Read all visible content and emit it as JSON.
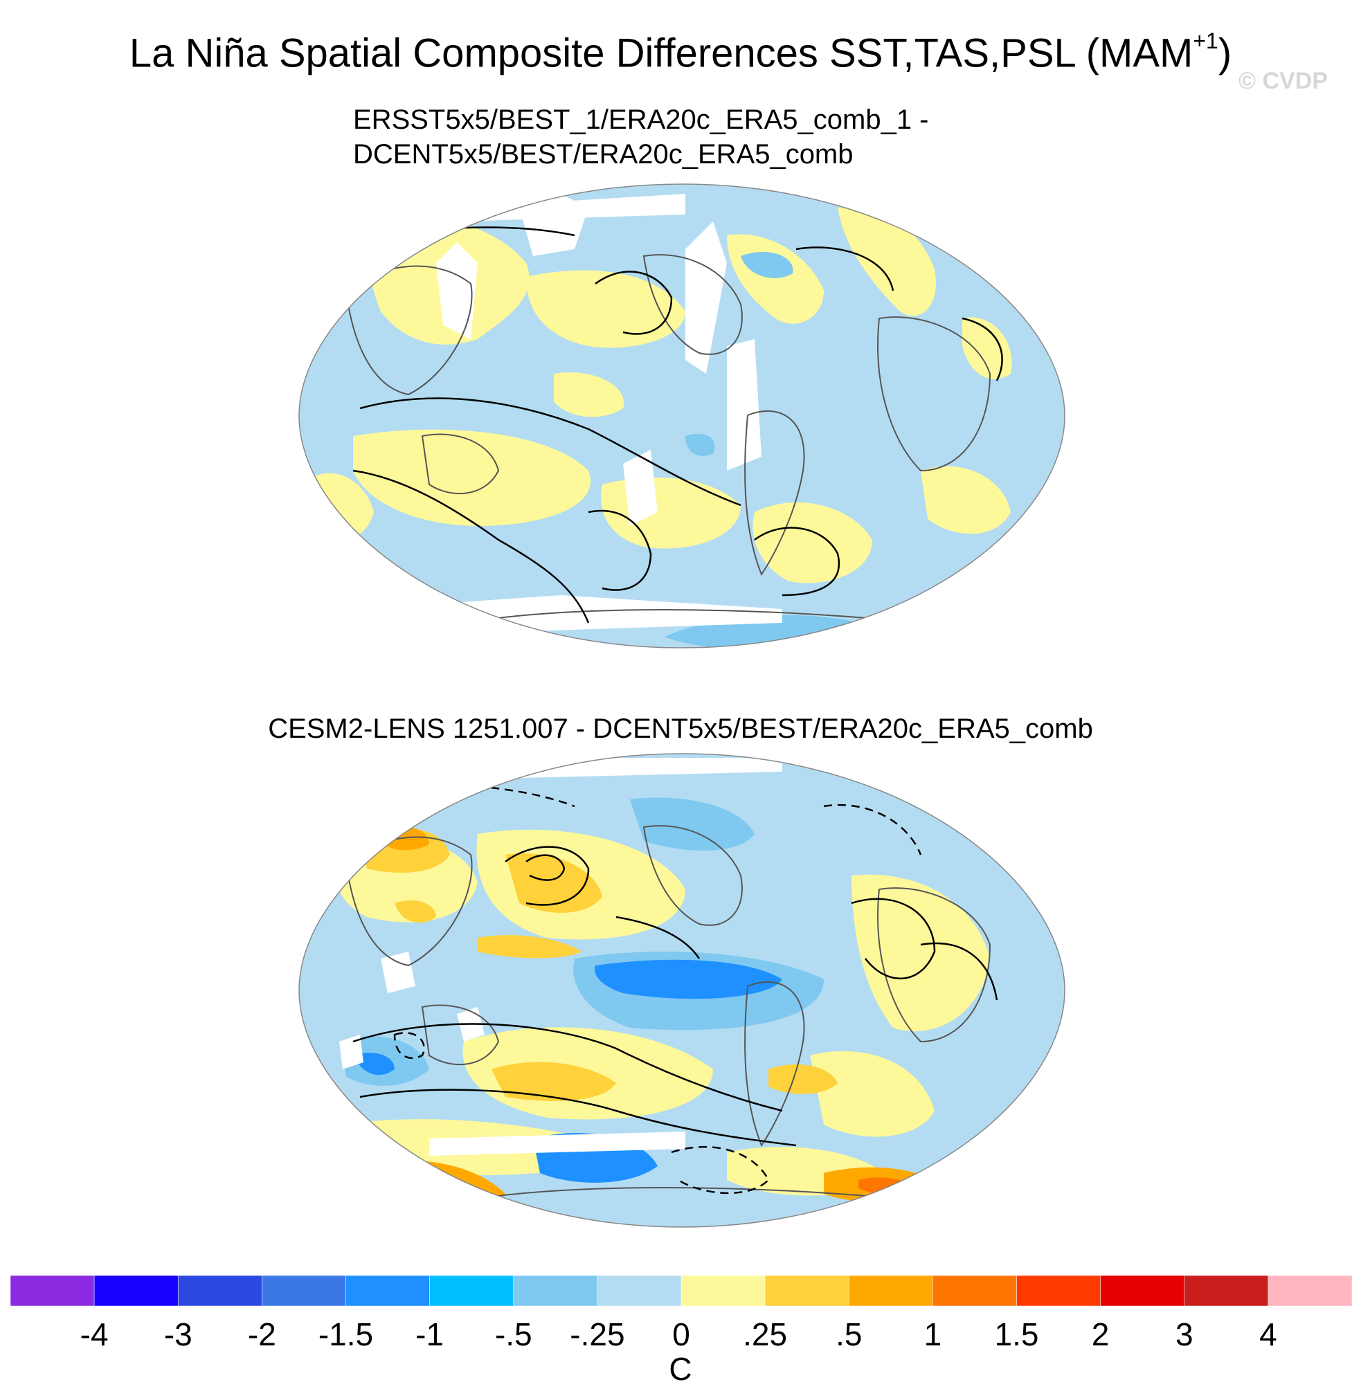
{
  "header": {
    "title_main": "La Niña Spatial Composite Differences SST,TAS,PSL (MAM",
    "title_sup": "+1",
    "title_close": ")",
    "watermark": "© CVDP"
  },
  "panels": [
    {
      "title_line1": "ERSST5x5/BEST_1/ERA20c_ERA5_comb_1 -",
      "title_line2": "DCENT5x5/BEST/ERA20c_ERA5_comb"
    },
    {
      "title_line1": "CESM2-LENS 1251.007 - DCENT5x5/BEST/ERA20c_ERA5_comb"
    }
  ],
  "colorbar": {
    "unit": "C",
    "levels": [
      "-4",
      "-3",
      "-2",
      "-1.5",
      "-1",
      "-.5",
      "-.25",
      "0",
      ".25",
      ".5",
      "1",
      "1.5",
      "2",
      "3",
      "4"
    ],
    "colors": [
      "#8a2be2",
      "#1a00ff",
      "#2b48e0",
      "#3a78e6",
      "#1e90ff",
      "#00bfff",
      "#7fc8ef",
      "#b3dcf2",
      "#fdf89a",
      "#ffd13a",
      "#ffa800",
      "#ff7600",
      "#ff3a00",
      "#e60000",
      "#c81e1e",
      "#ffb6c1"
    ]
  },
  "map_colors": {
    "ocean_neg": "#b3dcf2",
    "neg_mid": "#7fc8ef",
    "neg_strong": "#1e90ff",
    "pos_light": "#fdf89a",
    "pos_mid": "#ffd13a",
    "pos_strong": "#ffa800",
    "pos_max": "#ff7600",
    "missing": "#ffffff",
    "coast": "#555555",
    "contour": "#000000"
  }
}
